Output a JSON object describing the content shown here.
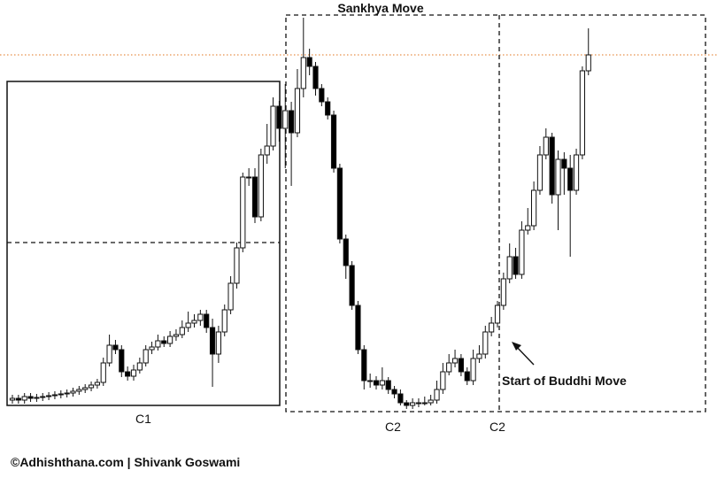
{
  "chart_data": {
    "type": "candlestick",
    "annotations": [
      "Sankhya Move",
      "C1",
      "C2",
      "C2",
      "Start of Buddhi Move"
    ],
    "credit": "©Adhishthana.com | Shivank Goswami",
    "ylim": [
      0,
      540
    ],
    "up_color": "#ffffff",
    "down_color": "#000000",
    "open": [
      88,
      90,
      88,
      92,
      90,
      91,
      92,
      93,
      94,
      95,
      96,
      98,
      100,
      102,
      105,
      108,
      130,
      150,
      145,
      120,
      115,
      122,
      130,
      145,
      148,
      155,
      152,
      160,
      162,
      170,
      175,
      178,
      185,
      170,
      140,
      165,
      190,
      220,
      260,
      340,
      340,
      295,
      365,
      375,
      420,
      395,
      415,
      390,
      440,
      475,
      465,
      440,
      425,
      410,
      350,
      270,
      240,
      195,
      145,
      110,
      110,
      105,
      110,
      100,
      95,
      85,
      82,
      85,
      85,
      85,
      88,
      100,
      120,
      130,
      135,
      120,
      110,
      135,
      140,
      165,
      175,
      195,
      225,
      250,
      230,
      280,
      285,
      325,
      365,
      385,
      320,
      360,
      350,
      325,
      365,
      460
    ],
    "high": [
      94,
      94,
      96,
      96,
      95,
      96,
      97,
      98,
      99,
      100,
      102,
      104,
      106,
      109,
      112,
      136,
      162,
      156,
      150,
      126,
      128,
      136,
      150,
      154,
      162,
      160,
      166,
      168,
      178,
      188,
      185,
      190,
      190,
      180,
      172,
      196,
      228,
      266,
      345,
      350,
      350,
      372,
      400,
      430,
      426,
      445,
      425,
      462,
      520,
      485,
      470,
      445,
      430,
      415,
      355,
      275,
      245,
      200,
      150,
      118,
      115,
      125,
      114,
      104,
      100,
      88,
      90,
      90,
      92,
      94,
      110,
      130,
      140,
      145,
      140,
      125,
      145,
      150,
      172,
      182,
      200,
      232,
      265,
      260,
      290,
      305,
      335,
      375,
      395,
      390,
      370,
      368,
      365,
      372,
      465,
      508
    ],
    "low": [
      84,
      84,
      84,
      86,
      86,
      87,
      88,
      89,
      90,
      91,
      92,
      94,
      96,
      98,
      101,
      104,
      126,
      140,
      114,
      110,
      110,
      118,
      126,
      140,
      144,
      148,
      148,
      155,
      158,
      165,
      170,
      172,
      164,
      103,
      130,
      160,
      185,
      214,
      255,
      330,
      288,
      290,
      355,
      370,
      380,
      350,
      330,
      385,
      430,
      455,
      432,
      420,
      405,
      345,
      265,
      225,
      190,
      140,
      100,
      102,
      100,
      100,
      95,
      90,
      82,
      78,
      78,
      80,
      82,
      82,
      84,
      95,
      116,
      125,
      115,
      105,
      105,
      130,
      135,
      160,
      170,
      190,
      220,
      225,
      225,
      275,
      280,
      320,
      360,
      310,
      280,
      320,
      250,
      320,
      360,
      455
    ],
    "close": [
      90,
      88,
      92,
      90,
      91,
      92,
      93,
      94,
      95,
      96,
      98,
      100,
      102,
      105,
      108,
      130,
      150,
      145,
      120,
      115,
      122,
      130,
      145,
      148,
      155,
      152,
      160,
      162,
      170,
      175,
      178,
      185,
      170,
      140,
      165,
      190,
      220,
      260,
      340,
      340,
      295,
      365,
      375,
      420,
      395,
      415,
      390,
      440,
      475,
      465,
      440,
      425,
      410,
      350,
      270,
      240,
      195,
      145,
      110,
      110,
      105,
      110,
      100,
      95,
      85,
      82,
      85,
      85,
      85,
      88,
      100,
      120,
      130,
      135,
      120,
      110,
      135,
      140,
      165,
      175,
      195,
      225,
      250,
      230,
      280,
      285,
      325,
      365,
      385,
      320,
      360,
      350,
      325,
      365,
      460,
      478
    ]
  }
}
